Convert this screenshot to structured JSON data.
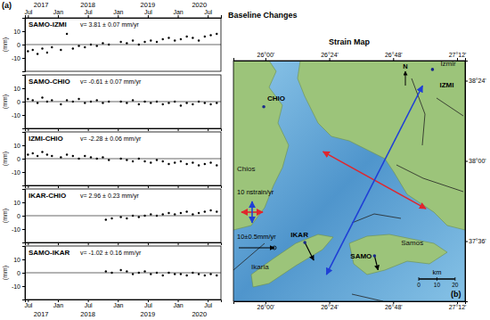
{
  "figure": {
    "label": "(a)",
    "title": "Baseline Changes"
  },
  "chart_data": [
    {
      "type": "scatter",
      "title": "SAMO-IZMI",
      "annotation": "v= 3.81 ± 0.07 mm/yr",
      "y_label": "(mm)",
      "x": [
        2017.5,
        2017.58,
        2017.66,
        2017.74,
        2017.82,
        2017.9,
        2018.05,
        2018.15,
        2018.25,
        2018.35,
        2018.45,
        2018.55,
        2018.65,
        2018.75,
        2018.85,
        2019.05,
        2019.15,
        2019.25,
        2019.35,
        2019.45,
        2019.55,
        2019.65,
        2019.75,
        2019.85,
        2019.95,
        2020.05,
        2020.15,
        2020.25,
        2020.35,
        2020.45,
        2020.55,
        2020.65
      ],
      "values": [
        -5,
        -4,
        -7,
        -3,
        -6,
        -2,
        -4,
        8,
        -3,
        -1,
        -2,
        0,
        -1,
        1,
        0,
        2,
        1,
        3,
        0,
        2,
        3,
        2,
        4,
        5,
        3,
        4,
        6,
        5,
        3,
        6,
        7,
        8
      ],
      "color": "#000000",
      "marker": "circle",
      "xlim": [
        2017.45,
        2020.72
      ],
      "xticks": [
        {
          "value": 2017.5,
          "label": "Jul"
        },
        {
          "value": 2018.0,
          "label": "Jan"
        },
        {
          "value": 2018.5,
          "label": "Jul"
        },
        {
          "value": 2019.0,
          "label": "Jan"
        },
        {
          "value": 2019.5,
          "label": "Jul"
        },
        {
          "value": 2020.0,
          "label": "Jan"
        },
        {
          "value": 2020.5,
          "label": "Jul"
        }
      ],
      "year_ticks": [
        {
          "value": 2017.72,
          "label": "2017"
        },
        {
          "value": 2018.5,
          "label": "2018"
        },
        {
          "value": 2019.5,
          "label": "2019"
        },
        {
          "value": 2020.36,
          "label": "2020"
        }
      ],
      "ylim": [
        -20,
        20
      ],
      "yticks": [
        -10,
        0,
        10
      ],
      "hline": 0
    },
    {
      "type": "scatter",
      "title": "SAMO-CHIO",
      "annotation": "v= -0.61 ± 0.07 mm/yr",
      "y_label": "(mm)",
      "x": [
        2017.5,
        2017.58,
        2017.66,
        2017.74,
        2017.82,
        2017.9,
        2018.05,
        2018.15,
        2018.25,
        2018.35,
        2018.45,
        2018.55,
        2018.65,
        2018.75,
        2018.85,
        2019.05,
        2019.15,
        2019.25,
        2019.35,
        2019.45,
        2019.55,
        2019.65,
        2019.75,
        2019.85,
        2019.95,
        2020.05,
        2020.15,
        2020.25,
        2020.35,
        2020.45,
        2020.55,
        2020.65
      ],
      "values": [
        2,
        1,
        -1,
        3,
        0,
        1,
        -2,
        1,
        0,
        2,
        -1,
        0,
        1,
        -1,
        0,
        0,
        -1,
        1,
        -2,
        0,
        -1,
        0,
        -2,
        -1,
        0,
        -3,
        -1,
        -2,
        0,
        -1,
        -2,
        -1
      ],
      "color": "#000000",
      "marker": "circle",
      "xlim": [
        2017.45,
        2020.72
      ],
      "xticks": [
        {
          "value": 2017.5,
          "label": "Jul"
        },
        {
          "value": 2018.0,
          "label": "Jan"
        },
        {
          "value": 2018.5,
          "label": "Jul"
        },
        {
          "value": 2019.0,
          "label": "Jan"
        },
        {
          "value": 2019.5,
          "label": "Jul"
        },
        {
          "value": 2020.0,
          "label": "Jan"
        },
        {
          "value": 2020.5,
          "label": "Jul"
        }
      ],
      "ylim": [
        -20,
        20
      ],
      "yticks": [
        -10,
        0,
        10
      ],
      "hline": 0,
      "tick_labels": "y"
    },
    {
      "type": "scatter",
      "title": "IZMI-CHIO",
      "annotation": "v= -2.28 ± 0.06 mm/yr",
      "y_label": "(mm)",
      "x": [
        2017.5,
        2017.58,
        2017.66,
        2017.74,
        2017.82,
        2017.9,
        2018.05,
        2018.15,
        2018.25,
        2018.35,
        2018.45,
        2018.55,
        2018.65,
        2018.75,
        2018.85,
        2019.05,
        2019.15,
        2019.25,
        2019.35,
        2019.45,
        2019.55,
        2019.65,
        2019.75,
        2019.85,
        2019.95,
        2020.05,
        2020.15,
        2020.25,
        2020.35,
        2020.45,
        2020.55,
        2020.65
      ],
      "values": [
        3,
        4,
        2,
        5,
        3,
        2,
        1,
        3,
        2,
        0,
        2,
        1,
        0,
        1,
        -1,
        0,
        -1,
        -2,
        0,
        -2,
        -3,
        -1,
        -2,
        -4,
        -3,
        -2,
        -4,
        -3,
        -5,
        -4,
        -3,
        -5
      ],
      "color": "#000000",
      "marker": "circle",
      "xlim": [
        2017.45,
        2020.72
      ],
      "xticks": [
        {
          "value": 2017.5,
          "label": "Jul"
        },
        {
          "value": 2018.0,
          "label": "Jan"
        },
        {
          "value": 2018.5,
          "label": "Jul"
        },
        {
          "value": 2019.0,
          "label": "Jan"
        },
        {
          "value": 2019.5,
          "label": "Jul"
        },
        {
          "value": 2020.0,
          "label": "Jan"
        },
        {
          "value": 2020.5,
          "label": "Jul"
        }
      ],
      "ylim": [
        -20,
        20
      ],
      "yticks": [
        -10,
        0,
        10
      ],
      "hline": 0,
      "tick_labels": "y"
    },
    {
      "type": "scatter",
      "title": "IKAR-CHIO",
      "annotation": "v= 2.96 ± 0.23 mm/yr",
      "y_label": "(mm)",
      "x": [
        2018.8,
        2018.9,
        2019.05,
        2019.15,
        2019.25,
        2019.35,
        2019.45,
        2019.55,
        2019.65,
        2019.75,
        2019.85,
        2019.95,
        2020.05,
        2020.15,
        2020.25,
        2020.35,
        2020.45,
        2020.55,
        2020.65
      ],
      "values": [
        -3,
        -2,
        -1,
        -2,
        0,
        -1,
        0,
        1,
        0,
        1,
        2,
        1,
        2,
        3,
        1,
        2,
        3,
        4,
        3
      ],
      "color": "#000000",
      "marker": "circle",
      "xlim": [
        2017.45,
        2020.72
      ],
      "xticks": [
        {
          "value": 2017.5,
          "label": "Jul"
        },
        {
          "value": 2018.0,
          "label": "Jan"
        },
        {
          "value": 2018.5,
          "label": "Jul"
        },
        {
          "value": 2019.0,
          "label": "Jan"
        },
        {
          "value": 2019.5,
          "label": "Jul"
        },
        {
          "value": 2020.0,
          "label": "Jan"
        },
        {
          "value": 2020.5,
          "label": "Jul"
        }
      ],
      "ylim": [
        -20,
        20
      ],
      "yticks": [
        -10,
        0,
        10
      ],
      "hline": 0,
      "tick_labels": "y"
    },
    {
      "type": "scatter",
      "title": "SAMO-IKAR",
      "annotation": "v= -1.02 ± 0.16 mm/yr",
      "y_label": "(mm)",
      "x": [
        2018.8,
        2018.9,
        2019.05,
        2019.15,
        2019.25,
        2019.35,
        2019.45,
        2019.55,
        2019.65,
        2019.75,
        2019.85,
        2019.95,
        2020.05,
        2020.15,
        2020.25,
        2020.35,
        2020.45,
        2020.55,
        2020.65
      ],
      "values": [
        1,
        0,
        2,
        1,
        -1,
        0,
        1,
        -1,
        0,
        -2,
        0,
        -1,
        -1,
        -2,
        0,
        -1,
        -2,
        -1,
        -2
      ],
      "color": "#000000",
      "marker": "circle",
      "xlim": [
        2017.45,
        2020.72
      ],
      "xticks": [
        {
          "value": 2017.5,
          "label": "Jul"
        },
        {
          "value": 2018.0,
          "label": "Jan"
        },
        {
          "value": 2018.5,
          "label": "Jul"
        },
        {
          "value": 2019.0,
          "label": "Jan"
        },
        {
          "value": 2019.5,
          "label": "Jul"
        },
        {
          "value": 2020.0,
          "label": "Jan"
        },
        {
          "value": 2020.5,
          "label": "Jul"
        }
      ],
      "year_ticks": [
        {
          "value": 2017.72,
          "label": "2017"
        },
        {
          "value": 2018.5,
          "label": "2018"
        },
        {
          "value": 2019.5,
          "label": "2019"
        },
        {
          "value": 2020.36,
          "label": "2020"
        }
      ],
      "ylim": [
        -20,
        20
      ],
      "yticks": [
        -10,
        0,
        10
      ],
      "hline": 0
    },
    {
      "type": "map",
      "title": "Strain Map",
      "label": "(b)",
      "xlim": [
        25.8,
        27.25
      ],
      "xticks": [
        {
          "value": 26.0,
          "label": "26°00'"
        },
        {
          "value": 26.4,
          "label": "26°24'"
        },
        {
          "value": 26.8,
          "label": "26°48'"
        },
        {
          "value": 27.2,
          "label": "27°12'"
        }
      ],
      "ylim": [
        37.3,
        38.5
      ],
      "yticks": [
        {
          "value": 38.4,
          "label": "38°24'"
        },
        {
          "value": 38.0,
          "label": "38°00'"
        },
        {
          "value": 37.6,
          "label": "37°36'"
        }
      ],
      "stations": [
        {
          "name": "CHIO",
          "lon": 25.99,
          "lat": 38.27
        },
        {
          "name": "IZMI",
          "lon": 27.046,
          "lat": 38.456
        },
        {
          "name": "SAMO",
          "lon": 26.683,
          "lat": 37.527,
          "ve": 1,
          "vn": -4
        },
        {
          "name": "IKAR",
          "lon": 26.247,
          "lat": 37.593,
          "ve": 2.5,
          "vn": -5
        }
      ],
      "places": [
        {
          "name": "Chios",
          "lon": 25.822,
          "lat": 37.949
        },
        {
          "name": "Izmir",
          "lon": 27.096,
          "lat": 38.473
        },
        {
          "name": "Samos",
          "lon": 26.85,
          "lat": 37.58
        },
        {
          "name": "Ikaria",
          "lon": 25.912,
          "lat": 37.46
        }
      ],
      "strain": {
        "lon": 26.683,
        "lat": 37.904,
        "extension": 55,
        "extension_azimuth": 119,
        "compression": -99,
        "compression_azimuth": 27
      },
      "strain_legend": {
        "value": 10,
        "label": "10 nstrain/yr"
      },
      "velocity_legend": {
        "value": 10,
        "error": 0.5,
        "label": "10±0.5mm/yr"
      },
      "scale_bar": {
        "label": "km",
        "ticks": [
          0,
          10,
          20
        ]
      },
      "north": "N"
    }
  ]
}
